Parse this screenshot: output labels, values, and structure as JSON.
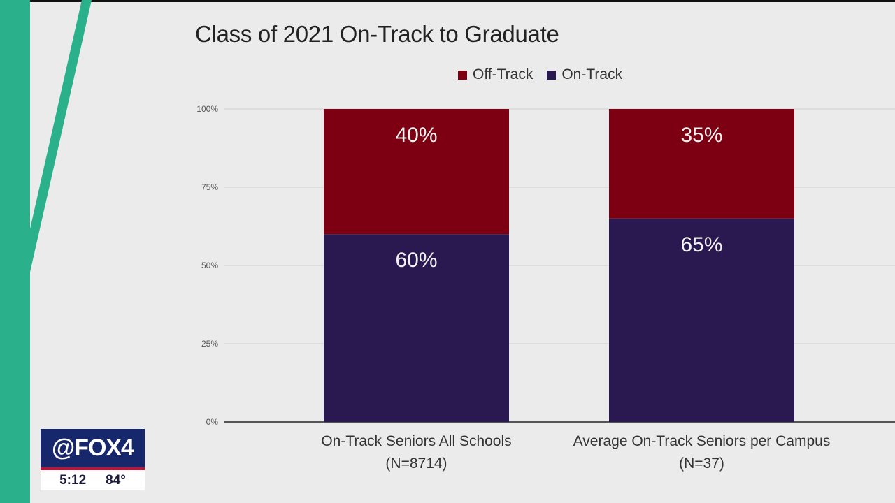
{
  "slide": {
    "title": "Class of 2021 On-Track to Graduate"
  },
  "chart_data": {
    "type": "bar",
    "stacked": true,
    "categories": [
      [
        "On-Track Seniors All Schools",
        "(N=8714)"
      ],
      [
        "Average On-Track Seniors per Campus",
        "(N=37)"
      ]
    ],
    "series": [
      {
        "name": "On-Track",
        "values": [
          60,
          65
        ],
        "labels": [
          "60%",
          "65%"
        ],
        "color": "#2a1850"
      },
      {
        "name": "Off-Track",
        "values": [
          40,
          35
        ],
        "labels": [
          "40%",
          "35%"
        ],
        "color": "#7d0012"
      }
    ],
    "legend_order": [
      "Off-Track",
      "On-Track"
    ],
    "legend_placement": "top-center",
    "ylim": [
      0,
      100
    ],
    "yticks": [
      "0%",
      "25%",
      "50%",
      "75%",
      "100%"
    ],
    "grid": true,
    "title": "Class of 2021 On-Track to Graduate",
    "xlabel": "",
    "ylabel": ""
  },
  "badge": {
    "logo": "@FOX4",
    "time": "5:12",
    "temp": "84°"
  },
  "colors": {
    "background": "#ebebeb",
    "accent_green": "#2bb08c",
    "badge_blue": "#17276b",
    "badge_red": "#c8102e"
  }
}
